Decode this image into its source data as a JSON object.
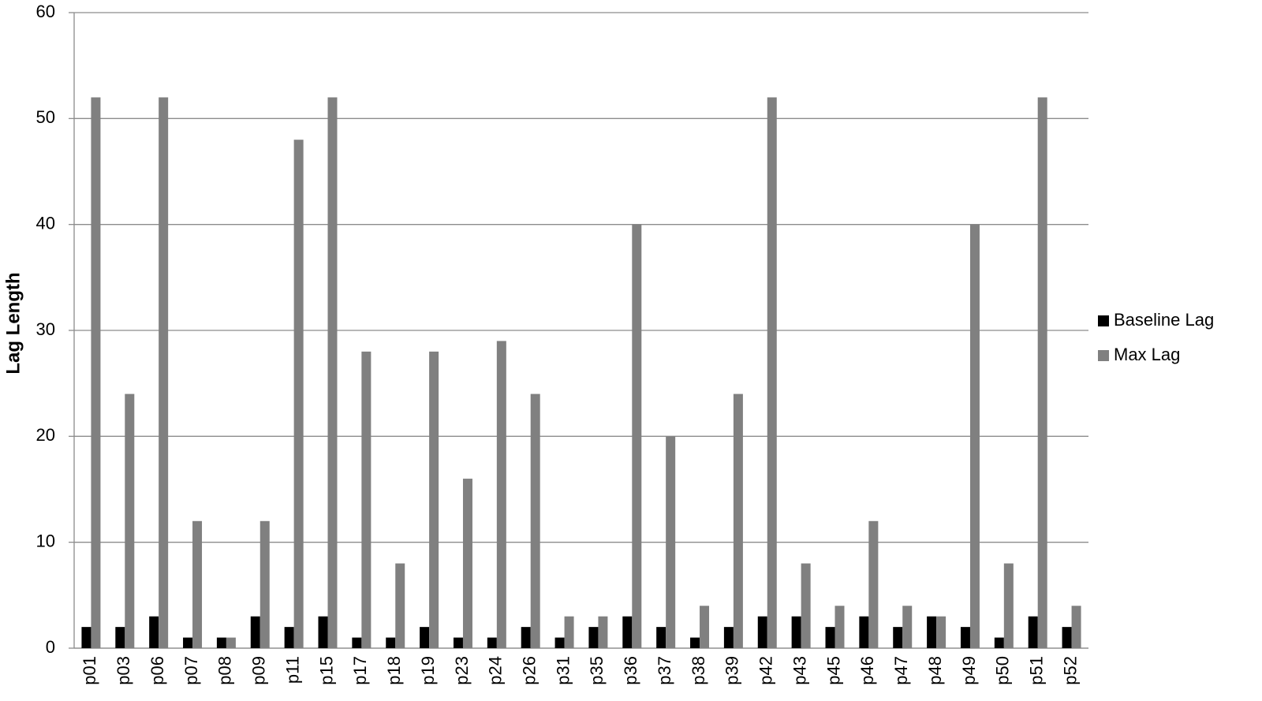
{
  "chart_data": {
    "type": "bar",
    "y_label": "Lag Length",
    "categories": [
      "p01",
      "p03",
      "p06",
      "p07",
      "p08",
      "p09",
      "p11",
      "p15",
      "p17",
      "p18",
      "p19",
      "p23",
      "p24",
      "p26",
      "p31",
      "p35",
      "p36",
      "p37",
      "p38",
      "p39",
      "p42",
      "p43",
      "p45",
      "p46",
      "p47",
      "p48",
      "p49",
      "p50",
      "p51",
      "p52"
    ],
    "series": [
      {
        "name": "Baseline Lag",
        "color": "#000000",
        "values": [
          2,
          2,
          3,
          1,
          1,
          3,
          2,
          3,
          1,
          1,
          2,
          1,
          1,
          2,
          1,
          2,
          3,
          2,
          1,
          2,
          3,
          3,
          2,
          3,
          2,
          3,
          2,
          1,
          3,
          2
        ]
      },
      {
        "name": "Max Lag",
        "color": "#808080",
        "values": [
          52,
          24,
          52,
          12,
          1,
          12,
          48,
          52,
          28,
          8,
          28,
          16,
          29,
          24,
          3,
          3,
          40,
          20,
          4,
          24,
          52,
          8,
          4,
          12,
          4,
          3,
          40,
          8,
          52,
          4
        ]
      }
    ],
    "ylim": [
      0,
      60
    ],
    "yticks": [
      0,
      10,
      20,
      30,
      40,
      50,
      60
    ],
    "grid": true,
    "legend": "right"
  }
}
